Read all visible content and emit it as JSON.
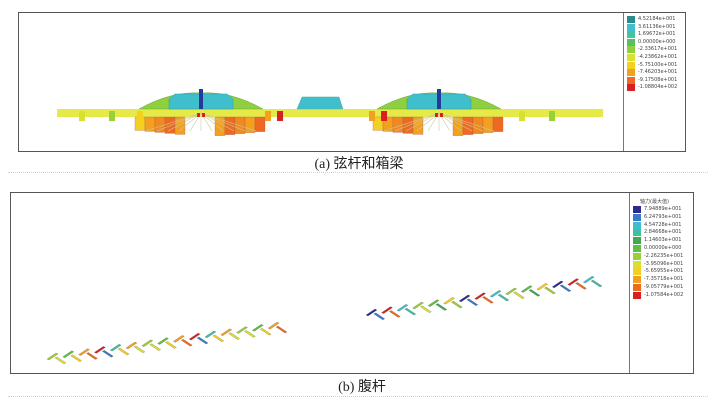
{
  "panel_a": {
    "caption": "(a) 弦杆和箱梁",
    "legend": {
      "labels": [
        "4.52184e+001",
        "3.61136e+001",
        "1.69672e+001",
        "0.00000e+000",
        "-2.33617e+001",
        "-4.23862e+001",
        "-5.75100e+001",
        "-7.46203e+001",
        "-9.17508e+001",
        "-1.08804e+002"
      ],
      "colors": [
        "#2c8c8c",
        "#3fbfcc",
        "#46c3a0",
        "#58c060",
        "#8fd040",
        "#d8e030",
        "#f4d020",
        "#f3a020",
        "#ee6a20",
        "#d82020"
      ]
    }
  },
  "panel_b": {
    "caption": "(b) 腹杆",
    "legend": {
      "title": "轴力(最大值)",
      "labels": [
        "7.94889e+001",
        "6.24793e+001",
        "4.54728e+001",
        "2.84668e+001",
        "1.14603e+001",
        "0.00000e+000",
        "-2.26235e+001",
        "-3.95096e+001",
        "-5.65955e+001",
        "-7.35718e+001",
        "-9.05779e+001",
        "-1.07584e+002"
      ],
      "colors": [
        "#2a2a90",
        "#3a78c8",
        "#3fbfcc",
        "#3fbfa0",
        "#40a850",
        "#5cc040",
        "#98d038",
        "#d8e030",
        "#f4d020",
        "#f3a020",
        "#ee6a20",
        "#d82020"
      ]
    }
  }
}
